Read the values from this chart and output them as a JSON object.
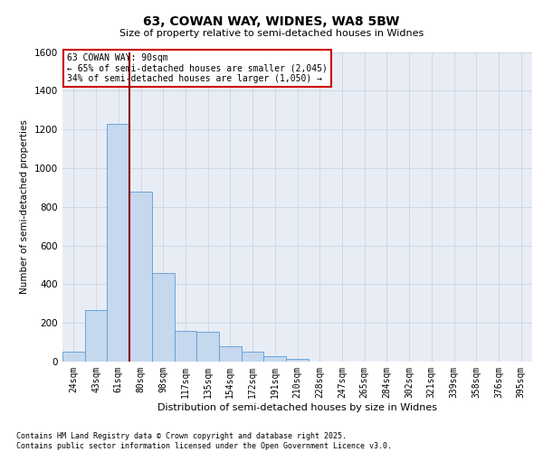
{
  "title_line1": "63, COWAN WAY, WIDNES, WA8 5BW",
  "title_line2": "Size of property relative to semi-detached houses in Widnes",
  "xlabel": "Distribution of semi-detached houses by size in Widnes",
  "ylabel": "Number of semi-detached properties",
  "categories": [
    "24sqm",
    "43sqm",
    "61sqm",
    "80sqm",
    "98sqm",
    "117sqm",
    "135sqm",
    "154sqm",
    "172sqm",
    "191sqm",
    "210sqm",
    "228sqm",
    "247sqm",
    "265sqm",
    "284sqm",
    "302sqm",
    "321sqm",
    "339sqm",
    "358sqm",
    "376sqm",
    "395sqm"
  ],
  "values": [
    50,
    265,
    1230,
    880,
    460,
    160,
    155,
    80,
    50,
    30,
    15,
    0,
    0,
    0,
    0,
    0,
    0,
    0,
    0,
    0,
    0
  ],
  "bar_color": "#c5d8ee",
  "bar_edge_color": "#5b9bd5",
  "pct_smaller": 65,
  "count_smaller": 2045,
  "pct_larger": 34,
  "count_larger": 1050,
  "vline_color": "#8b0000",
  "vline_x_index": 2.5,
  "annotation_box_color": "#cc0000",
  "ylim": [
    0,
    1600
  ],
  "yticks": [
    0,
    200,
    400,
    600,
    800,
    1000,
    1200,
    1400,
    1600
  ],
  "grid_color": "#c8cfe0",
  "bg_color": "#e8edf5",
  "footer_line1": "Contains HM Land Registry data © Crown copyright and database right 2025.",
  "footer_line2": "Contains public sector information licensed under the Open Government Licence v3.0."
}
